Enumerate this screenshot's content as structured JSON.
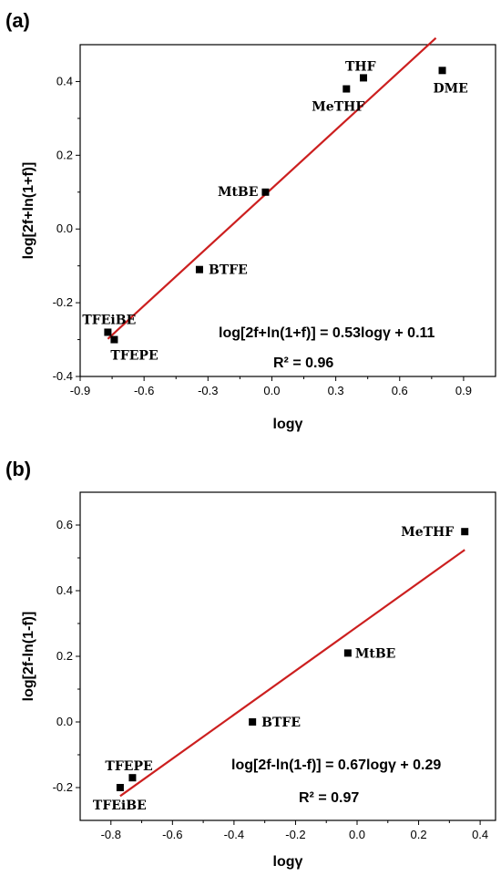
{
  "chart_data": [
    {
      "type": "scatter",
      "panel_label": "(a)",
      "xlabel": "logγ",
      "ylabel": "log[2f+ln(1+f)]",
      "xlim": [
        -0.9,
        1.05
      ],
      "ylim": [
        -0.4,
        0.5
      ],
      "xticks": [
        "-0.9",
        "-0.6",
        "-0.3",
        "0.0",
        "0.3",
        "0.6",
        "0.9"
      ],
      "xtick_values": [
        -0.9,
        -0.6,
        -0.3,
        0.0,
        0.3,
        0.6,
        0.9
      ],
      "yticks": [
        "-0.4",
        "-0.2",
        "0.0",
        "0.2",
        "0.4"
      ],
      "ytick_values": [
        -0.4,
        -0.2,
        0.0,
        0.2,
        0.4
      ],
      "points": [
        {
          "label": "TFEiBE",
          "x": -0.77,
          "y": -0.28
        },
        {
          "label": "TFEPE",
          "x": -0.74,
          "y": -0.3
        },
        {
          "label": "BTFE",
          "x": -0.34,
          "y": -0.11
        },
        {
          "label": "MtBE",
          "x": -0.03,
          "y": 0.1
        },
        {
          "label": "MeTHF",
          "x": 0.35,
          "y": 0.38
        },
        {
          "label": "THF",
          "x": 0.43,
          "y": 0.41
        },
        {
          "label": "DME",
          "x": 0.8,
          "y": 0.43
        }
      ],
      "fit": {
        "slope": 0.53,
        "intercept": 0.11,
        "x_range": [
          -0.77,
          0.77
        ]
      },
      "equation": "log[2f+ln(1+f)] = 0.53logγ + 0.11",
      "r2": "R² = 0.96",
      "grid": false,
      "colors": {
        "marker": "#000000",
        "fit_line": "#cc1f1f"
      }
    },
    {
      "type": "scatter",
      "panel_label": "(b)",
      "xlabel": "logγ",
      "ylabel": "log[2f-ln(1-f)]",
      "xlim": [
        -0.9,
        0.45
      ],
      "ylim": [
        -0.3,
        0.7
      ],
      "xticks": [
        "-0.8",
        "-0.6",
        "-0.4",
        "-0.2",
        "0.0",
        "0.2",
        "0.4"
      ],
      "xtick_values": [
        -0.8,
        -0.6,
        -0.4,
        -0.2,
        0.0,
        0.2,
        0.4
      ],
      "yticks": [
        "-0.2",
        "0.0",
        "0.2",
        "0.4",
        "0.6"
      ],
      "ytick_values": [
        -0.2,
        0.0,
        0.2,
        0.4,
        0.6
      ],
      "points": [
        {
          "label": "TFEiBE",
          "x": -0.77,
          "y": -0.2
        },
        {
          "label": "TFEPE",
          "x": -0.73,
          "y": -0.17
        },
        {
          "label": "BTFE",
          "x": -0.34,
          "y": 0.0
        },
        {
          "label": "MtBE",
          "x": -0.03,
          "y": 0.21
        },
        {
          "label": "MeTHF",
          "x": 0.35,
          "y": 0.58
        }
      ],
      "fit": {
        "slope": 0.67,
        "intercept": 0.29,
        "x_range": [
          -0.77,
          0.35
        ]
      },
      "equation": "log[2f-ln(1-f)] = 0.67logγ + 0.29",
      "r2": "R² = 0.97",
      "grid": false,
      "colors": {
        "marker": "#000000",
        "fit_line": "#cc1f1f"
      }
    }
  ]
}
